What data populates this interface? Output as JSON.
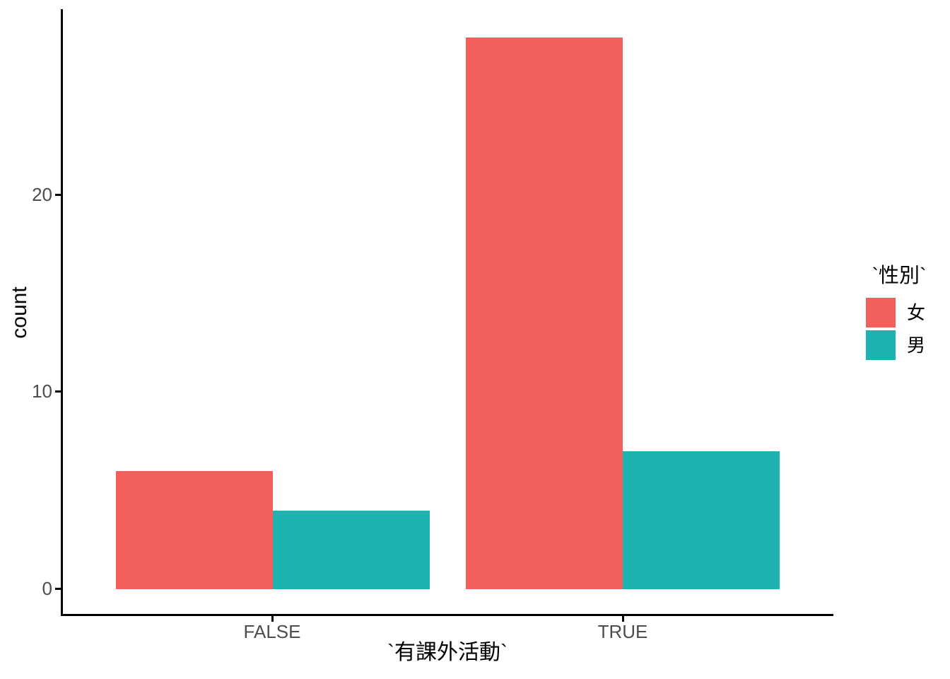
{
  "chart_data": {
    "type": "bar",
    "title": "",
    "xlabel": "`有課外活動`",
    "ylabel": "count",
    "categories": [
      "FALSE",
      "TRUE"
    ],
    "series": [
      {
        "name": "女",
        "key": "female",
        "color": "#F3605C",
        "values": [
          6,
          28
        ]
      },
      {
        "name": "男",
        "key": "male",
        "color": "#1CB3B1",
        "values": [
          4,
          7
        ]
      }
    ],
    "yticks": [
      0,
      10,
      20
    ],
    "ylim": [
      0,
      28
    ],
    "legend_title": "`性別`",
    "legend_position": "right",
    "grid": false,
    "theme": "classic",
    "bar_layout": "dodged",
    "axis_color": "#000000",
    "tick_label_color": "#4d4d4d"
  }
}
